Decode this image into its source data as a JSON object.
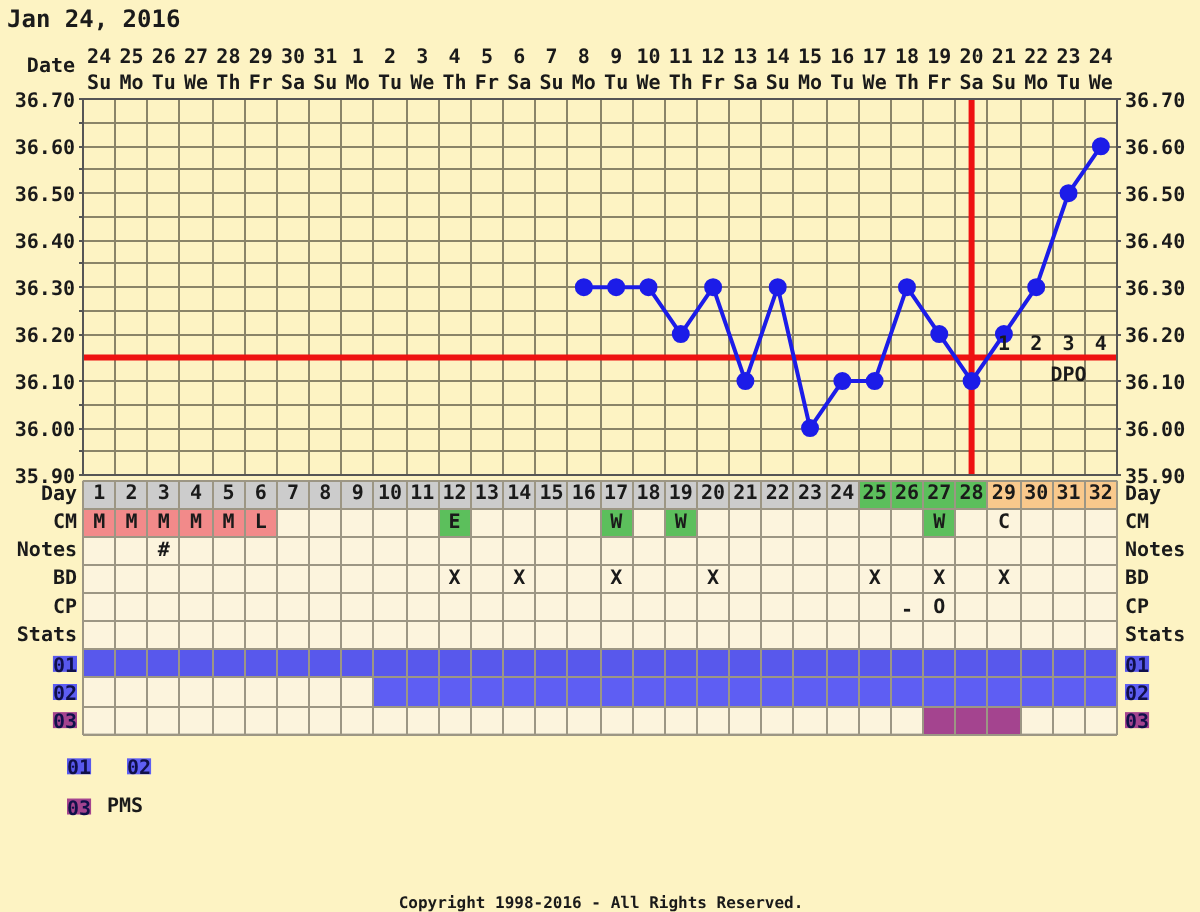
{
  "chart_data": [
    {
      "type": "line",
      "title": "Jan 24, 2016",
      "x2label": "Date",
      "x": [
        16,
        17,
        18,
        19,
        20,
        21,
        22,
        23,
        24,
        25,
        26,
        27,
        28,
        29,
        30,
        31,
        32
      ],
      "values": [
        36.3,
        36.3,
        36.3,
        36.2,
        36.3,
        36.1,
        36.3,
        36.0,
        36.1,
        36.1,
        36.3,
        36.2,
        36.1,
        36.2,
        36.3,
        36.5,
        36.6
      ],
      "color": "#1c1ce8",
      "marker": "circle",
      "line_style": "solid",
      "grid": true,
      "xlim": [
        0.5,
        32.5
      ],
      "xticks": [
        1,
        2,
        3,
        4,
        5,
        6,
        7,
        8,
        9,
        10,
        11,
        12,
        13,
        14,
        15,
        16,
        17,
        18,
        19,
        20,
        21,
        22,
        23,
        24,
        25,
        26,
        27,
        28,
        29,
        30,
        31,
        32
      ],
      "x2lim": [
        "2016-01-23T12:00",
        "2016-02-24T12:00"
      ],
      "x2ticks": [
        {
          "value": "2016-01-24",
          "label": "24 Su"
        },
        {
          "value": "2016-01-25",
          "label": "25 Mo"
        },
        {
          "value": "2016-01-26",
          "label": "26 Tu"
        },
        {
          "value": "2016-01-27",
          "label": "27 We"
        },
        {
          "value": "2016-01-28",
          "label": "28 Th"
        },
        {
          "value": "2016-01-29",
          "label": "29 Fr"
        },
        {
          "value": "2016-01-30",
          "label": "30 Sa"
        },
        {
          "value": "2016-01-31",
          "label": "31 Su"
        },
        {
          "value": "2016-02-01",
          "label": "1 Mo"
        },
        {
          "value": "2016-02-02",
          "label": "2 Tu"
        },
        {
          "value": "2016-02-03",
          "label": "3 We"
        },
        {
          "value": "2016-02-04",
          "label": "4 Th"
        },
        {
          "value": "2016-02-05",
          "label": "5 Fr"
        },
        {
          "value": "2016-02-06",
          "label": "6 Sa"
        },
        {
          "value": "2016-02-07",
          "label": "7 Su"
        },
        {
          "value": "2016-02-08",
          "label": "8 Mo"
        },
        {
          "value": "2016-02-09",
          "label": "9 Tu"
        },
        {
          "value": "2016-02-10",
          "label": "10 We"
        },
        {
          "value": "2016-02-11",
          "label": "11 Th"
        },
        {
          "value": "2016-02-12",
          "label": "12 Fr"
        },
        {
          "value": "2016-02-13",
          "label": "13 Sa"
        },
        {
          "value": "2016-02-14",
          "label": "14 Su"
        },
        {
          "value": "2016-02-15",
          "label": "15 Mo"
        },
        {
          "value": "2016-02-16",
          "label": "16 Tu"
        },
        {
          "value": "2016-02-17",
          "label": "17 We"
        },
        {
          "value": "2016-02-18",
          "label": "18 Th"
        },
        {
          "value": "2016-02-19",
          "label": "19 Fr"
        },
        {
          "value": "2016-02-20",
          "label": "20 Sa"
        },
        {
          "value": "2016-02-21",
          "label": "21 Su"
        },
        {
          "value": "2016-02-22",
          "label": "22 Mo"
        },
        {
          "value": "2016-02-23",
          "label": "23 Tu"
        },
        {
          "value": "2016-02-24",
          "label": "24 We"
        }
      ],
      "ylim": [
        35.9,
        36.7
      ],
      "yticks": [
        {
          "value": 35.9,
          "label": "35.90"
        },
        {
          "value": 35.95,
          "label": null
        },
        {
          "value": 36.0,
          "label": "36.00"
        },
        {
          "value": 36.05,
          "label": null
        },
        {
          "value": 36.1,
          "label": "36.10"
        },
        {
          "value": 36.2,
          "label": "36.20"
        },
        {
          "value": 36.25,
          "label": null
        },
        {
          "value": 36.3,
          "label": "36.30"
        },
        {
          "value": 36.35,
          "label": null
        },
        {
          "value": 36.4,
          "label": "36.40"
        },
        {
          "value": 36.45,
          "label": null
        },
        {
          "value": 36.5,
          "label": "36.50"
        },
        {
          "value": 36.55,
          "label": null
        },
        {
          "value": 36.6,
          "label": "36.60"
        },
        {
          "value": 36.65,
          "label": null
        },
        {
          "value": 36.7,
          "label": "36.70"
        }
      ],
      "y2lim": [
        35.9,
        36.7
      ],
      "y2ticks": [
        {
          "value": 35.9,
          "label": "35.90"
        },
        {
          "value": 36.0,
          "label": "36.00"
        },
        {
          "value": 36.1,
          "label": "36.10"
        },
        {
          "value": 36.2,
          "label": "36.20"
        },
        {
          "value": 36.3,
          "label": "36.30"
        },
        {
          "value": 36.4,
          "label": "36.40"
        },
        {
          "value": 36.5,
          "label": "36.50"
        },
        {
          "value": 36.6,
          "label": "36.60"
        },
        {
          "value": 36.7,
          "label": "36.70"
        }
      ],
      "ref_lines": [
        {
          "axis": "y",
          "value": 36.15,
          "color": "#ee1111"
        },
        {
          "axis": "x",
          "value": 28,
          "color": "#ee1111"
        }
      ],
      "annotations": [
        {
          "text": "1",
          "x": 29,
          "y": 36.15
        },
        {
          "text": "2",
          "x": 30,
          "y": 36.15
        },
        {
          "text": "3",
          "x": 31,
          "y": 36.15
        },
        {
          "text": "4",
          "x": 32,
          "y": 36.15
        },
        {
          "text": "DPO",
          "x": 31,
          "y": 36.15
        }
      ]
    },
    {
      "type": "other",
      "y_categories": [
        "Day",
        "CM",
        "Notes",
        "BD",
        "CP",
        "Stats"
      ],
      "y2_categories": [
        "Day",
        "CM",
        "Notes",
        "BD",
        "CP",
        "Stats"
      ],
      "cell_labels": [
        [
          null,
          null,
          null,
          null,
          null,
          null,
          null,
          null,
          null,
          null,
          null,
          null,
          null,
          null,
          null,
          null,
          null,
          null,
          null,
          null,
          null,
          null,
          null,
          null,
          null,
          null,
          null,
          null,
          null,
          null,
          null,
          null
        ],
        [
          "M",
          "M",
          "M",
          "M",
          "M",
          "L",
          null,
          null,
          null,
          null,
          null,
          "E",
          null,
          null,
          null,
          null,
          "W",
          null,
          "W",
          null,
          null,
          null,
          null,
          null,
          null,
          null,
          "W",
          null,
          "C",
          null,
          null,
          null
        ],
        [
          null,
          null,
          "#",
          null,
          null,
          null,
          null,
          null,
          null,
          null,
          null,
          null,
          null,
          null,
          null,
          null,
          null,
          null,
          null,
          null,
          null,
          null,
          null,
          null,
          null,
          null,
          null,
          null,
          null,
          null,
          null,
          null
        ],
        [
          null,
          null,
          null,
          null,
          null,
          null,
          null,
          null,
          null,
          null,
          null,
          "X",
          null,
          "X",
          null,
          null,
          "X",
          null,
          null,
          "X",
          null,
          null,
          null,
          null,
          "X",
          null,
          "X",
          null,
          "X",
          null,
          null,
          null
        ],
        [
          null,
          null,
          null,
          null,
          null,
          null,
          null,
          null,
          null,
          null,
          null,
          null,
          null,
          null,
          null,
          null,
          null,
          null,
          null,
          null,
          null,
          null,
          null,
          null,
          null,
          "-",
          "O",
          null,
          null,
          null,
          null,
          null
        ],
        [
          null,
          null,
          null,
          null,
          null,
          null,
          null,
          null,
          null,
          null,
          null,
          null,
          null,
          null,
          null,
          null,
          null,
          null,
          null,
          null,
          null,
          null,
          null,
          null,
          null,
          null,
          null,
          null,
          null,
          null,
          null,
          null
        ]
      ],
      "colors": [
        [
          "#cccccc",
          "#cccccc",
          "#cccccc",
          "#cccccc",
          "#cccccc",
          "#cccccc",
          "#cccccc",
          "#cccccc",
          "#cccccc",
          "#cccccc",
          "#cccccc",
          "#cccccc",
          "#cccccc",
          "#cccccc",
          "#cccccc",
          "#cccccc",
          "#cccccc",
          "#cccccc",
          "#cccccc",
          "#cccccc",
          "#cccccc",
          "#cccccc",
          "#cccccc",
          "#cccccc",
          "#5cbf5c",
          "#5cbf5c",
          "#5cbf5c",
          "#5cbf5c",
          "#f9c98c",
          "#f9c98c",
          "#f9c98c",
          "#f9c98c"
        ],
        [
          "#f28a8a",
          "#f28a8a",
          "#f28a8a",
          "#f28a8a",
          "#f28a8a",
          "#f28a8a",
          null,
          null,
          null,
          null,
          null,
          "#5cbf5c",
          null,
          null,
          null,
          null,
          "#5cbf5c",
          null,
          "#5cbf5c",
          null,
          null,
          null,
          null,
          null,
          null,
          null,
          "#5cbf5c",
          null,
          null,
          null,
          null,
          null
        ],
        [
          null,
          null,
          null,
          null,
          null,
          null,
          null,
          null,
          null,
          null,
          null,
          null,
          null,
          null,
          null,
          null,
          null,
          null,
          null,
          null,
          null,
          null,
          null,
          null,
          null,
          null,
          null,
          null,
          null,
          null,
          null,
          null
        ],
        [
          null,
          null,
          null,
          null,
          null,
          null,
          null,
          null,
          null,
          null,
          null,
          null,
          null,
          null,
          null,
          null,
          null,
          null,
          null,
          null,
          null,
          null,
          null,
          null,
          null,
          null,
          null,
          null,
          null,
          null,
          null,
          null
        ],
        [
          null,
          null,
          null,
          null,
          null,
          null,
          null,
          null,
          null,
          null,
          null,
          null,
          null,
          null,
          null,
          null,
          null,
          null,
          null,
          null,
          null,
          null,
          null,
          null,
          null,
          null,
          null,
          null,
          null,
          null,
          null,
          null
        ],
        [
          null,
          null,
          null,
          null,
          null,
          null,
          null,
          null,
          null,
          null,
          null,
          null,
          null,
          null,
          null,
          null,
          null,
          null,
          null,
          null,
          null,
          null,
          null,
          null,
          null,
          null,
          null,
          null,
          null,
          null,
          null,
          null
        ]
      ],
      "annotations": [
        "Copyright 1998-2016 - All Rights Reserved."
      ]
    },
    {
      "type": "bar",
      "orientation": "horizontal",
      "categories": [
        "01",
        "02",
        "03"
      ],
      "y2_categories": [
        "01",
        "02",
        "03"
      ],
      "series": [
        {
          "color": "#5858ec",
          "base": [
            0.5,
            null,
            null
          ],
          "values": [
            32,
            null,
            null
          ]
        },
        {
          "color": "#5e5ef3",
          "base": [
            null,
            9.5,
            null
          ],
          "values": [
            null,
            23,
            null
          ]
        },
        {
          "name": "PMS",
          "color": "#a4448f",
          "base": [
            null,
            null,
            26.5
          ],
          "values": [
            null,
            null,
            3
          ]
        }
      ],
      "xlim": [
        0.5,
        32.5
      ],
      "xticks": [
        1,
        2,
        3,
        4,
        5,
        6,
        7,
        8,
        9,
        10,
        11,
        12,
        13,
        14,
        15,
        16,
        17,
        18,
        19,
        20,
        21,
        22,
        23,
        24,
        25,
        26,
        27,
        28,
        29,
        30,
        31,
        32
      ],
      "tick_labels": "y",
      "grid": true,
      "legend": "bottom left"
    }
  ]
}
